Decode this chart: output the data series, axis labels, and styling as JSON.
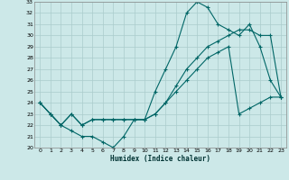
{
  "xlabel": "Humidex (Indice chaleur)",
  "bg_color": "#cce8e8",
  "line_color": "#006666",
  "grid_color": "#aacccc",
  "ylim": [
    20,
    33
  ],
  "xlim": [
    -0.5,
    23.5
  ],
  "yticks": [
    20,
    21,
    22,
    23,
    24,
    25,
    26,
    27,
    28,
    29,
    30,
    31,
    32,
    33
  ],
  "xticks": [
    0,
    1,
    2,
    3,
    4,
    5,
    6,
    7,
    8,
    9,
    10,
    11,
    12,
    13,
    14,
    15,
    16,
    17,
    18,
    19,
    20,
    21,
    22,
    23
  ],
  "line1_x": [
    0,
    1,
    2,
    3,
    4,
    5,
    6,
    7,
    8,
    9,
    10,
    11,
    12,
    13,
    14,
    15,
    16,
    17,
    18,
    19,
    20,
    21,
    22,
    23
  ],
  "line1_y": [
    24,
    23,
    22,
    21.5,
    21,
    21,
    20.5,
    20,
    21,
    22.5,
    22.5,
    25,
    27,
    29,
    32,
    33,
    32.5,
    31,
    30.5,
    30,
    31,
    29,
    26,
    24.5
  ],
  "line2_x": [
    0,
    1,
    2,
    3,
    4,
    5,
    6,
    7,
    8,
    9,
    10,
    11,
    12,
    13,
    14,
    15,
    16,
    17,
    18,
    19,
    20,
    21,
    22,
    23
  ],
  "line2_y": [
    24,
    23,
    22,
    23,
    22,
    22.5,
    22.5,
    22.5,
    22.5,
    22.5,
    22.5,
    23,
    24,
    25.5,
    27,
    28,
    29,
    29.5,
    30,
    30.5,
    30.5,
    30,
    30,
    24.5
  ],
  "line3_x": [
    0,
    1,
    2,
    3,
    4,
    5,
    6,
    7,
    8,
    9,
    10,
    11,
    12,
    13,
    14,
    15,
    16,
    17,
    18,
    19,
    20,
    21,
    22,
    23
  ],
  "line3_y": [
    24,
    23,
    22,
    23,
    22,
    22.5,
    22.5,
    22.5,
    22.5,
    22.5,
    22.5,
    23,
    24,
    25,
    26,
    27,
    28,
    28.5,
    29,
    23,
    23.5,
    24,
    24.5,
    24.5
  ]
}
